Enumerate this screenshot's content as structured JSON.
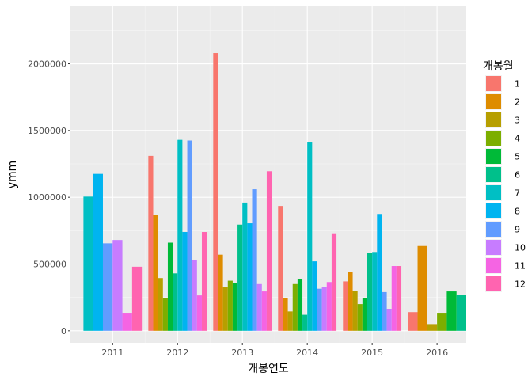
{
  "chart_data": {
    "type": "bar",
    "xlabel": "개봉연도",
    "ylabel": "ymm",
    "x_ticks": [
      "2011",
      "2012",
      "2013",
      "2014",
      "2015",
      "2016"
    ],
    "x_range": [
      2010.35,
      2016.45
    ],
    "ylim": [
      -90000,
      2430000
    ],
    "y_ticks": [
      0,
      500000,
      1000000,
      1500000,
      2000000
    ],
    "y_tick_labels": [
      "0",
      "500000",
      "1000000",
      "1500000",
      "2000000"
    ],
    "grid": true,
    "legend": {
      "title": "개봉월",
      "placement": "right",
      "entries": [
        {
          "label": "1",
          "color": "#F8766D"
        },
        {
          "label": "2",
          "color": "#DE8C00"
        },
        {
          "label": "3",
          "color": "#B79F00"
        },
        {
          "label": "4",
          "color": "#7CAE00"
        },
        {
          "label": "5",
          "color": "#00BA38"
        },
        {
          "label": "6",
          "color": "#00C08B"
        },
        {
          "label": "7",
          "color": "#00BFC4"
        },
        {
          "label": "8",
          "color": "#00B4F0"
        },
        {
          "label": "9",
          "color": "#619CFF"
        },
        {
          "label": "10",
          "color": "#C77CFF"
        },
        {
          "label": "11",
          "color": "#F564E3"
        },
        {
          "label": "12",
          "color": "#FF64B0"
        }
      ]
    },
    "groups": [
      {
        "year": 2011,
        "bars": [
          {
            "month": 7,
            "value": 1005000
          },
          {
            "month": 8,
            "value": 1175000
          },
          {
            "month": 9,
            "value": 655000
          },
          {
            "month": 10,
            "value": 680000
          },
          {
            "month": 11,
            "value": 135000
          },
          {
            "month": 12,
            "value": 480000
          }
        ]
      },
      {
        "year": 2012,
        "bars": [
          {
            "month": 1,
            "value": 1310000
          },
          {
            "month": 2,
            "value": 865000
          },
          {
            "month": 3,
            "value": 395000
          },
          {
            "month": 4,
            "value": 245000
          },
          {
            "month": 5,
            "value": 660000
          },
          {
            "month": 6,
            "value": 430000
          },
          {
            "month": 7,
            "value": 1430000
          },
          {
            "month": 8,
            "value": 740000
          },
          {
            "month": 9,
            "value": 1425000
          },
          {
            "month": 10,
            "value": 530000
          },
          {
            "month": 11,
            "value": 265000
          },
          {
            "month": 12,
            "value": 740000
          }
        ]
      },
      {
        "year": 2013,
        "bars": [
          {
            "month": 1,
            "value": 2080000
          },
          {
            "month": 2,
            "value": 570000
          },
          {
            "month": 3,
            "value": 325000
          },
          {
            "month": 4,
            "value": 375000
          },
          {
            "month": 5,
            "value": 355000
          },
          {
            "month": 6,
            "value": 795000
          },
          {
            "month": 7,
            "value": 960000
          },
          {
            "month": 8,
            "value": 805000
          },
          {
            "month": 9,
            "value": 1060000
          },
          {
            "month": 10,
            "value": 350000
          },
          {
            "month": 11,
            "value": 295000
          },
          {
            "month": 12,
            "value": 1195000
          }
        ]
      },
      {
        "year": 2014,
        "bars": [
          {
            "month": 1,
            "value": 935000
          },
          {
            "month": 2,
            "value": 245000
          },
          {
            "month": 3,
            "value": 145000
          },
          {
            "month": 4,
            "value": 350000
          },
          {
            "month": 5,
            "value": 385000
          },
          {
            "month": 6,
            "value": 120000
          },
          {
            "month": 7,
            "value": 1410000
          },
          {
            "month": 8,
            "value": 520000
          },
          {
            "month": 9,
            "value": 315000
          },
          {
            "month": 10,
            "value": 325000
          },
          {
            "month": 11,
            "value": 365000
          },
          {
            "month": 12,
            "value": 730000
          }
        ]
      },
      {
        "year": 2015,
        "bars": [
          {
            "month": 1,
            "value": 370000
          },
          {
            "month": 2,
            "value": 440000
          },
          {
            "month": 3,
            "value": 300000
          },
          {
            "month": 4,
            "value": 200000
          },
          {
            "month": 5,
            "value": 245000
          },
          {
            "month": 6,
            "value": 580000
          },
          {
            "month": 7,
            "value": 590000
          },
          {
            "month": 8,
            "value": 875000
          },
          {
            "month": 9,
            "value": 290000
          },
          {
            "month": 10,
            "value": 165000
          },
          {
            "month": 11,
            "value": 485000
          },
          {
            "month": 12,
            "value": 485000
          }
        ]
      },
      {
        "year": 2016,
        "bars": [
          {
            "month": 1,
            "value": 140000
          },
          {
            "month": 2,
            "value": 635000
          },
          {
            "month": 3,
            "value": 50000
          },
          {
            "month": 4,
            "value": 135000
          },
          {
            "month": 5,
            "value": 295000
          },
          {
            "month": 6,
            "value": 270000
          }
        ]
      }
    ]
  }
}
